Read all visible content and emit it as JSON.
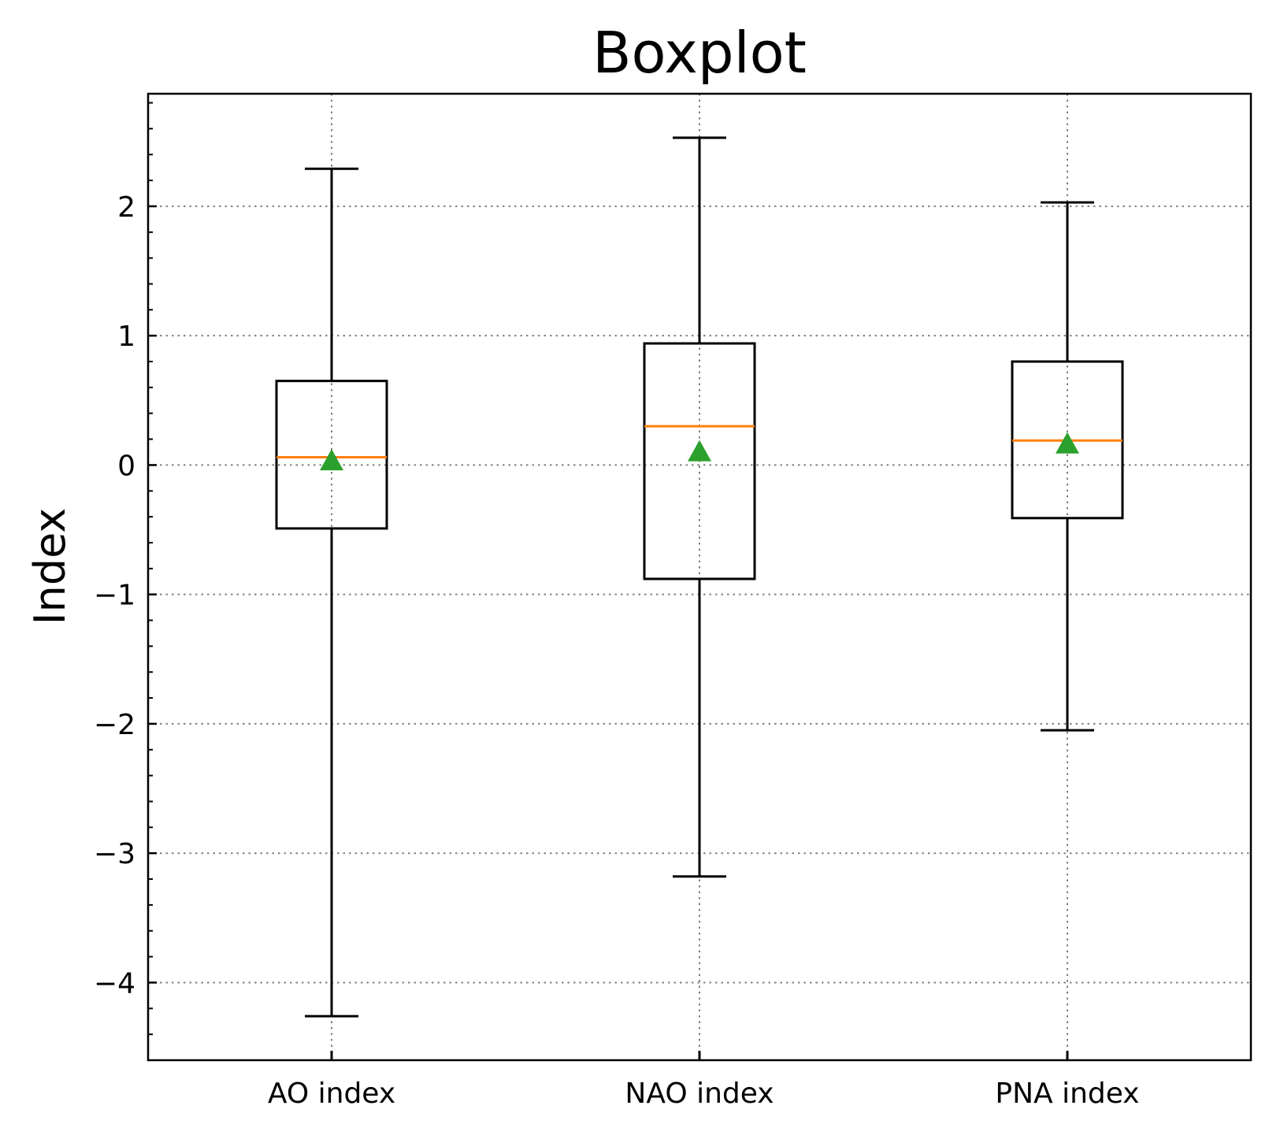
{
  "chart_data": {
    "type": "box",
    "title": "Boxplot",
    "xlabel": "",
    "ylabel": "Index",
    "ylim": [
      -4.6,
      2.87
    ],
    "yticks": [
      2,
      1,
      0,
      -1,
      -2,
      -3,
      -4
    ],
    "ytick_labels": [
      "2",
      "1",
      "0",
      "−1",
      "−2",
      "−3",
      "−4"
    ],
    "grid": true,
    "categories": [
      "AO index",
      "NAO index",
      "PNA index"
    ],
    "boxes": [
      {
        "label": "AO index",
        "whisker_low": -4.26,
        "q1": -0.49,
        "median": 0.06,
        "mean": 0.02,
        "q3": 0.65,
        "whisker_high": 2.29
      },
      {
        "label": "NAO index",
        "whisker_low": -3.18,
        "q1": -0.88,
        "median": 0.3,
        "mean": 0.09,
        "q3": 0.94,
        "whisker_high": 2.53
      },
      {
        "label": "PNA index",
        "whisker_low": -2.05,
        "q1": -0.41,
        "median": 0.19,
        "mean": 0.15,
        "q3": 0.8,
        "whisker_high": 2.03
      }
    ],
    "colors": {
      "box": "#000000",
      "median": "#ff7f0e",
      "mean": "#2ca02c",
      "grid": "#808080"
    }
  }
}
